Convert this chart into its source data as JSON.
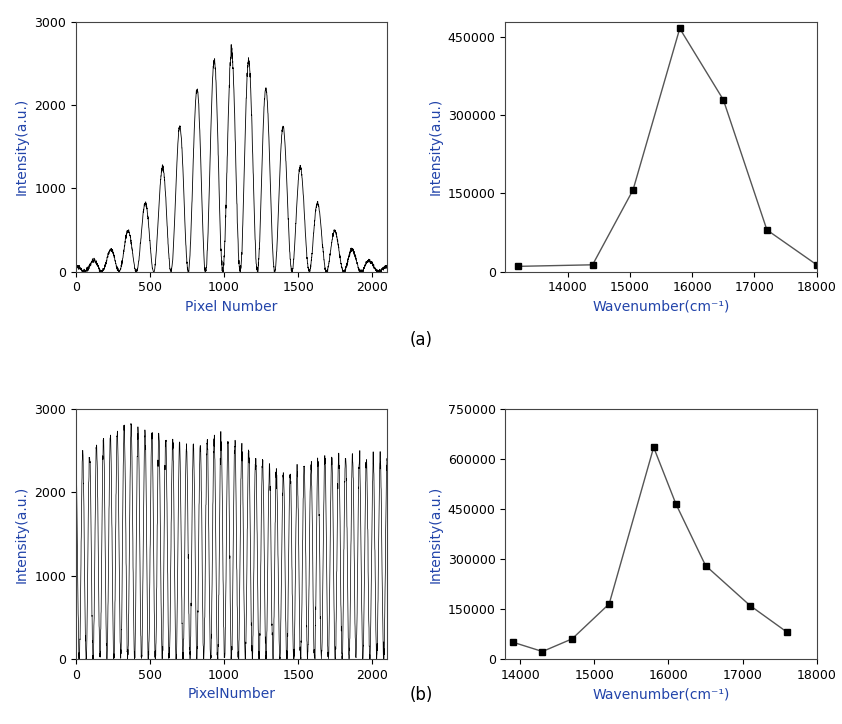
{
  "panel_a_spectrum_x": [
    13200,
    14400,
    15050,
    15800,
    16500,
    17200,
    18000
  ],
  "panel_a_spectrum_y": [
    10000,
    13000,
    157000,
    467000,
    330000,
    80000,
    13000
  ],
  "panel_b_spectrum_x": [
    13900,
    14300,
    14700,
    15200,
    15800,
    16100,
    16500,
    17100,
    17600
  ],
  "panel_b_spectrum_y": [
    50000,
    22000,
    60000,
    165000,
    635000,
    465000,
    280000,
    160000,
    80000
  ],
  "xlabel_interferogram_a": "Pixel Number",
  "xlabel_interferogram_b": "PixelNumber",
  "xlabel_spectrum": "Wavenumber(cm⁻¹)",
  "ylabel_intensity": "Intensity(a.u.)",
  "label_a": "(a)",
  "label_b": "(b)",
  "interferogram_a_xlim": [
    0,
    2100
  ],
  "interferogram_a_ylim": [
    0,
    3000
  ],
  "interferogram_b_xlim": [
    0,
    2100
  ],
  "interferogram_b_ylim": [
    0,
    3000
  ],
  "spectrum_a_xlim": [
    13000,
    18000
  ],
  "spectrum_a_ylim": [
    0,
    480000
  ],
  "spectrum_b_xlim": [
    13800,
    18000
  ],
  "spectrum_b_ylim": [
    0,
    750000
  ],
  "spectrum_a_yticks": [
    0,
    150000,
    300000,
    450000
  ],
  "spectrum_b_yticks": [
    0,
    150000,
    300000,
    450000,
    600000,
    750000
  ],
  "spectrum_a_xticks": [
    14000,
    15000,
    16000,
    17000,
    18000
  ],
  "spectrum_b_xticks": [
    14000,
    15000,
    16000,
    17000,
    18000
  ],
  "interferogram_xticks": [
    0,
    500,
    1000,
    1500,
    2000
  ],
  "interferogram_yticks": [
    0,
    1000,
    2000,
    3000
  ],
  "line_color": "#555555",
  "marker_style": "s",
  "marker_size": 5,
  "marker_color": "#000000",
  "axis_label_color_blue": "#2244aa",
  "tick_label_color": "#000000",
  "font_size_label": 10,
  "font_size_tick": 9,
  "label_fontsize": 12,
  "n_peaks_a": 18,
  "n_peaks_b": 45
}
